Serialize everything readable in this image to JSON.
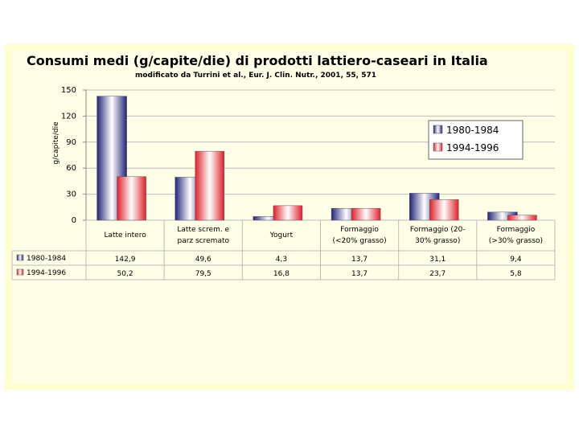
{
  "chart_data": {
    "type": "bar",
    "title": "Consumi medi (g/capite/die) di prodotti lattiero-caseari in Italia",
    "subtitle": "modificato da Turrini et al., Eur. J. Clin. Nutr., 2001, 55, 571",
    "y_label": "g/capite/die",
    "categories": [
      "Latte intero",
      "Latte screm. e\nparz scremato",
      "Yogurt",
      "Formaggio\n(<20% grasso)",
      "Formaggio (20-\n30% grasso)",
      "Formaggio\n(>30% grasso)"
    ],
    "series": [
      {
        "name": "1980-1984",
        "color": "#23237a",
        "values": [
          142.9,
          49.6,
          4.3,
          13.7,
          31.1,
          9.4
        ],
        "value_labels": [
          "142,9",
          "49,6",
          "4,3",
          "13,7",
          "31,1",
          "9,4"
        ]
      },
      {
        "name": "1994-1996",
        "color": "#e0202c",
        "values": [
          50.2,
          79.5,
          16.8,
          13.7,
          23.7,
          5.8
        ],
        "value_labels": [
          "50,2",
          "79,5",
          "16,8",
          "13,7",
          "23,7",
          "5,8"
        ]
      }
    ],
    "ylim": [
      0,
      150
    ],
    "yticks": [
      0,
      30,
      60,
      90,
      120,
      150
    ],
    "grid": true,
    "legend": "upper right"
  }
}
